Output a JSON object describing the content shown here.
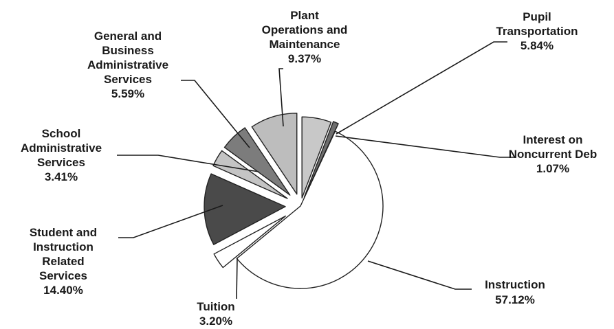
{
  "chart_data": {
    "type": "pie",
    "exploded": true,
    "title": "",
    "slices": [
      {
        "key": "pupil",
        "label_lines": [
          "Pupil",
          "Transportation"
        ],
        "percent_label": "5.84%",
        "value": 5.84,
        "color": "#c8c8c8"
      },
      {
        "key": "interest",
        "label_lines": [
          "Interest on",
          "Noncurrent Deb"
        ],
        "percent_label": "1.07%",
        "value": 1.07,
        "color": "#6e6e6e"
      },
      {
        "key": "instruction",
        "label_lines": [
          "Instruction"
        ],
        "percent_label": "57.12%",
        "value": 57.12,
        "color": "#ffffff"
      },
      {
        "key": "tuition",
        "label_lines": [
          "Tuition"
        ],
        "percent_label": "3.20%",
        "value": 3.2,
        "color": "#ffffff"
      },
      {
        "key": "student",
        "label_lines": [
          "Student and",
          "Instruction",
          "Related",
          "Services"
        ],
        "percent_label": "14.40%",
        "value": 14.4,
        "color": "#4a4a4a"
      },
      {
        "key": "school",
        "label_lines": [
          "School",
          "Administrative",
          "Services"
        ],
        "percent_label": "3.41%",
        "value": 3.41,
        "color": "#c4c4c4"
      },
      {
        "key": "general",
        "label_lines": [
          "General and",
          "Business",
          "Administrative",
          "Services"
        ],
        "percent_label": "5.59%",
        "value": 5.59,
        "color": "#7c7c7c"
      },
      {
        "key": "plant",
        "label_lines": [
          "Plant",
          "Operations and",
          "Maintenance"
        ],
        "percent_label": "9.37%",
        "value": 9.37,
        "color": "#bdbdbd"
      }
    ]
  }
}
